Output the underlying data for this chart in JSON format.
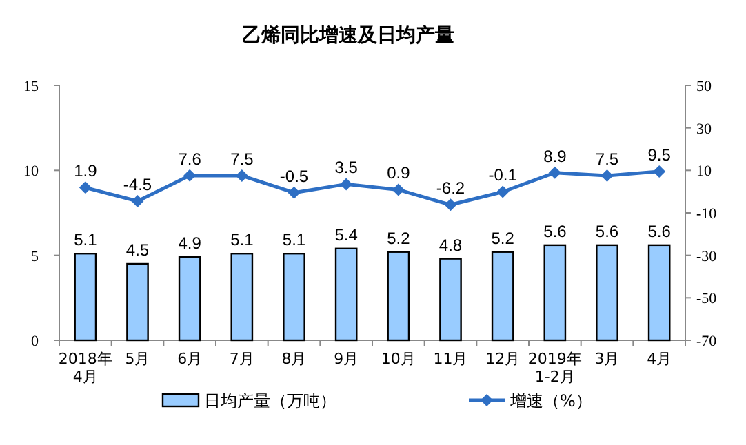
{
  "chart_data": {
    "type": "bar",
    "title": "乙烯同比增速及日均产量",
    "categories": [
      "2018年\n4月",
      "5月",
      "6月",
      "7月",
      "8月",
      "9月",
      "10月",
      "11月",
      "12月",
      "2019年\n1-2月",
      "3月",
      "4月"
    ],
    "series": [
      {
        "name": "日均产量（万吨）",
        "color": "#99ccff",
        "values": [
          5.1,
          4.5,
          4.9,
          5.1,
          5.1,
          5.4,
          5.2,
          4.8,
          5.2,
          5.6,
          5.6,
          5.6
        ]
      },
      {
        "name": "增速（%）",
        "type": "line",
        "axis": "y2",
        "color": "#2e6fc4",
        "marker": "diamond",
        "values": [
          1.9,
          -4.5,
          7.6,
          7.5,
          -0.5,
          3.5,
          0.9,
          -6.2,
          -0.1,
          8.9,
          7.5,
          9.5
        ]
      }
    ],
    "ylim": [
      0,
      15
    ],
    "yticks": [
      0,
      5,
      10,
      15
    ],
    "y2lim": [
      -70,
      50
    ],
    "y2ticks": [
      -70,
      -50,
      -30,
      -10,
      10,
      30,
      50
    ],
    "data_labels": true,
    "legend": "bottom",
    "grid": false
  }
}
